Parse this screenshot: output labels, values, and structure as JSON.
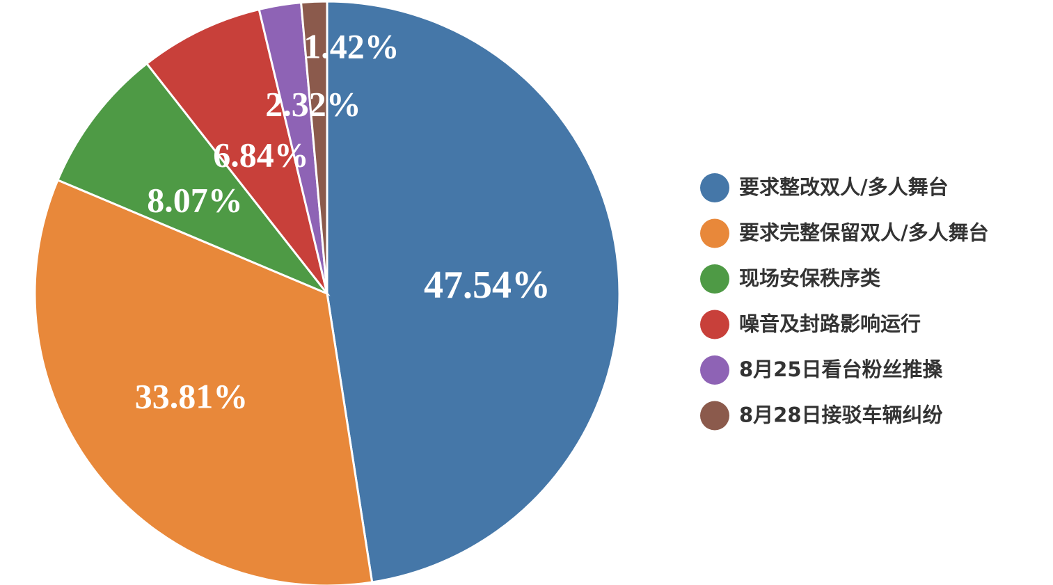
{
  "chart_data": {
    "type": "pie",
    "categories": [
      "要求整改双人/多人舞台",
      "要求完整保留双人/多人舞台",
      "现场安保秩序类",
      "噪音及封路影响运行",
      "8月25日看台粉丝推搡",
      "8月28日接驳车辆纠纷"
    ],
    "values": [
      47.54,
      33.81,
      8.07,
      6.84,
      2.32,
      1.42
    ],
    "value_labels": [
      "47.54%",
      "33.81%",
      "8.07%",
      "6.84%",
      "2.32%",
      "1.42%"
    ],
    "colors": [
      "#4577a8",
      "#e8883a",
      "#4e9a45",
      "#c8403a",
      "#8e63b5",
      "#8b5a4c"
    ],
    "legend": "right"
  }
}
